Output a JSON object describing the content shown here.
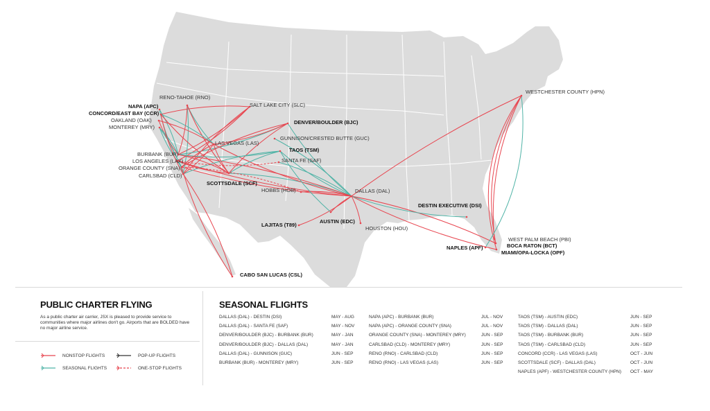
{
  "map": {
    "colors": {
      "land": "#dcdcdc",
      "border": "#ffffff",
      "nonstop": "#e8454f",
      "seasonal": "#4fb3a6",
      "popup": "#333333",
      "onestop": "#e8454f"
    },
    "airports": {
      "reno": "RENO-TAHOE (RNO)",
      "napa": "NAPA (APC)",
      "concord": "CONCORD/EAST BAY (CCR)",
      "oakland": "OAKLAND (OAK)",
      "monterey": "MONTEREY (MRY)",
      "burbank": "BURBANK (BUR)",
      "lax": "LOS ANGELES (LAX)",
      "sna": "ORANGE COUNTY (SNA)",
      "carlsbad": "CARLSBAD (CLD)",
      "slc": "SALT LAKE CITY (SLC)",
      "lasvegas": "LAS VEGAS (LAS)",
      "denver": "DENVER/BOULDER (BJC)",
      "gunnison": "GUNNISON/CRESTED BUTTE (GUC)",
      "taos": "TAOS (TSM)",
      "santafe": "SANTA FE (SAF)",
      "scottsdale": "SCOTTSDALE (SCF)",
      "hobbs": "HOBBS (HOB)",
      "dallas": "DALLAS (DAL)",
      "lajitas": "LAJITAS (T89)",
      "austin": "AUSTIN (EDC)",
      "houston": "HOUSTON (HOU)",
      "destin": "DESTIN EXECUTIVE (DSI)",
      "westchester": "WESTCHESTER COUNTY (HPN)",
      "wpb": "WEST PALM BEACH (PBI)",
      "bocaraton": "BOCA RATON (BCT)",
      "naples": "NAPLES (APF)",
      "miami": "MIAMI/OPA-LOCKA (OPF)",
      "cabo": "CABO SAN LUCAS (CSL)"
    }
  },
  "info": {
    "title": "PUBLIC CHARTER FLYING",
    "description": "As a public charter air carrier, JSX is pleased to provide service to communities where major airlines don't go. Airports that are BOLDED have no major airline service."
  },
  "legend": {
    "nonstop": "NONSTOP FLIGHTS",
    "seasonal": "SEASONAL FLIGHTS",
    "popup": "POP-UP FLIGHTS",
    "onestop": "ONE-STOP FLIGHTS"
  },
  "seasonal": {
    "title": "SEASONAL FLIGHTS",
    "col1": [
      {
        "route": "DALLAS (DAL) - DESTIN (DSI)",
        "months": "MAY - AUG"
      },
      {
        "route": "DALLAS (DAL) - SANTA FE (SAF)",
        "months": "MAY - NOV"
      },
      {
        "route": "DENVER/BOULDER (BJC) - BURBANK (BUR)",
        "months": "MAY - JAN"
      },
      {
        "route": "DENVER/BOULDER (BJC) - DALLAS (DAL)",
        "months": "MAY - JAN"
      },
      {
        "route": "DALLAS (DAL) - GUNNISON (GUC)",
        "months": "JUN - SEP"
      },
      {
        "route": "BURBANK (BUR) - MONTEREY (MRY)",
        "months": "JUN - SEP"
      }
    ],
    "col2": [
      {
        "route": "NAPA (APC) - BURBANK (BUR)",
        "months": "JUL - NOV"
      },
      {
        "route": "NAPA (APC) - ORANGE COUNTY (SNA)",
        "months": "JUL - NOV"
      },
      {
        "route": "ORANGE COUNTY (SNA) - MONTEREY (MRY)",
        "months": "JUN - SEP"
      },
      {
        "route": "CARLSBAD (CLD) - MONTEREY (MRY)",
        "months": "JUN - SEP"
      },
      {
        "route": "RENO (RNO) - CARLSBAD (CLD)",
        "months": "JUN - SEP"
      },
      {
        "route": "RENO (RNO) - LAS VEGAS (LAS)",
        "months": "JUN - SEP"
      }
    ],
    "col3": [
      {
        "route": "TAOS (TSM) - AUSTIN (EDC)",
        "months": "JUN - SEP"
      },
      {
        "route": "TAOS (TSM) - DALLAS (DAL)",
        "months": "JUN - SEP"
      },
      {
        "route": "TAOS (TSM) - BURBANK (BUR)",
        "months": "JUN - SEP"
      },
      {
        "route": "TAOS (TSM) - CARLSBAD (CLD)",
        "months": "JUN - SEP"
      },
      {
        "route": "CONCORD (CCR) - LAS VEGAS (LAS)",
        "months": "OCT - JUN"
      },
      {
        "route": "SCOTTSDALE (SCF) - DALLAS (DAL)",
        "months": "OCT - JUN"
      },
      {
        "route": "NAPLES (APF) - WESTCHESTER COUNTY (HPN)",
        "months": "OCT - MAY"
      }
    ]
  }
}
